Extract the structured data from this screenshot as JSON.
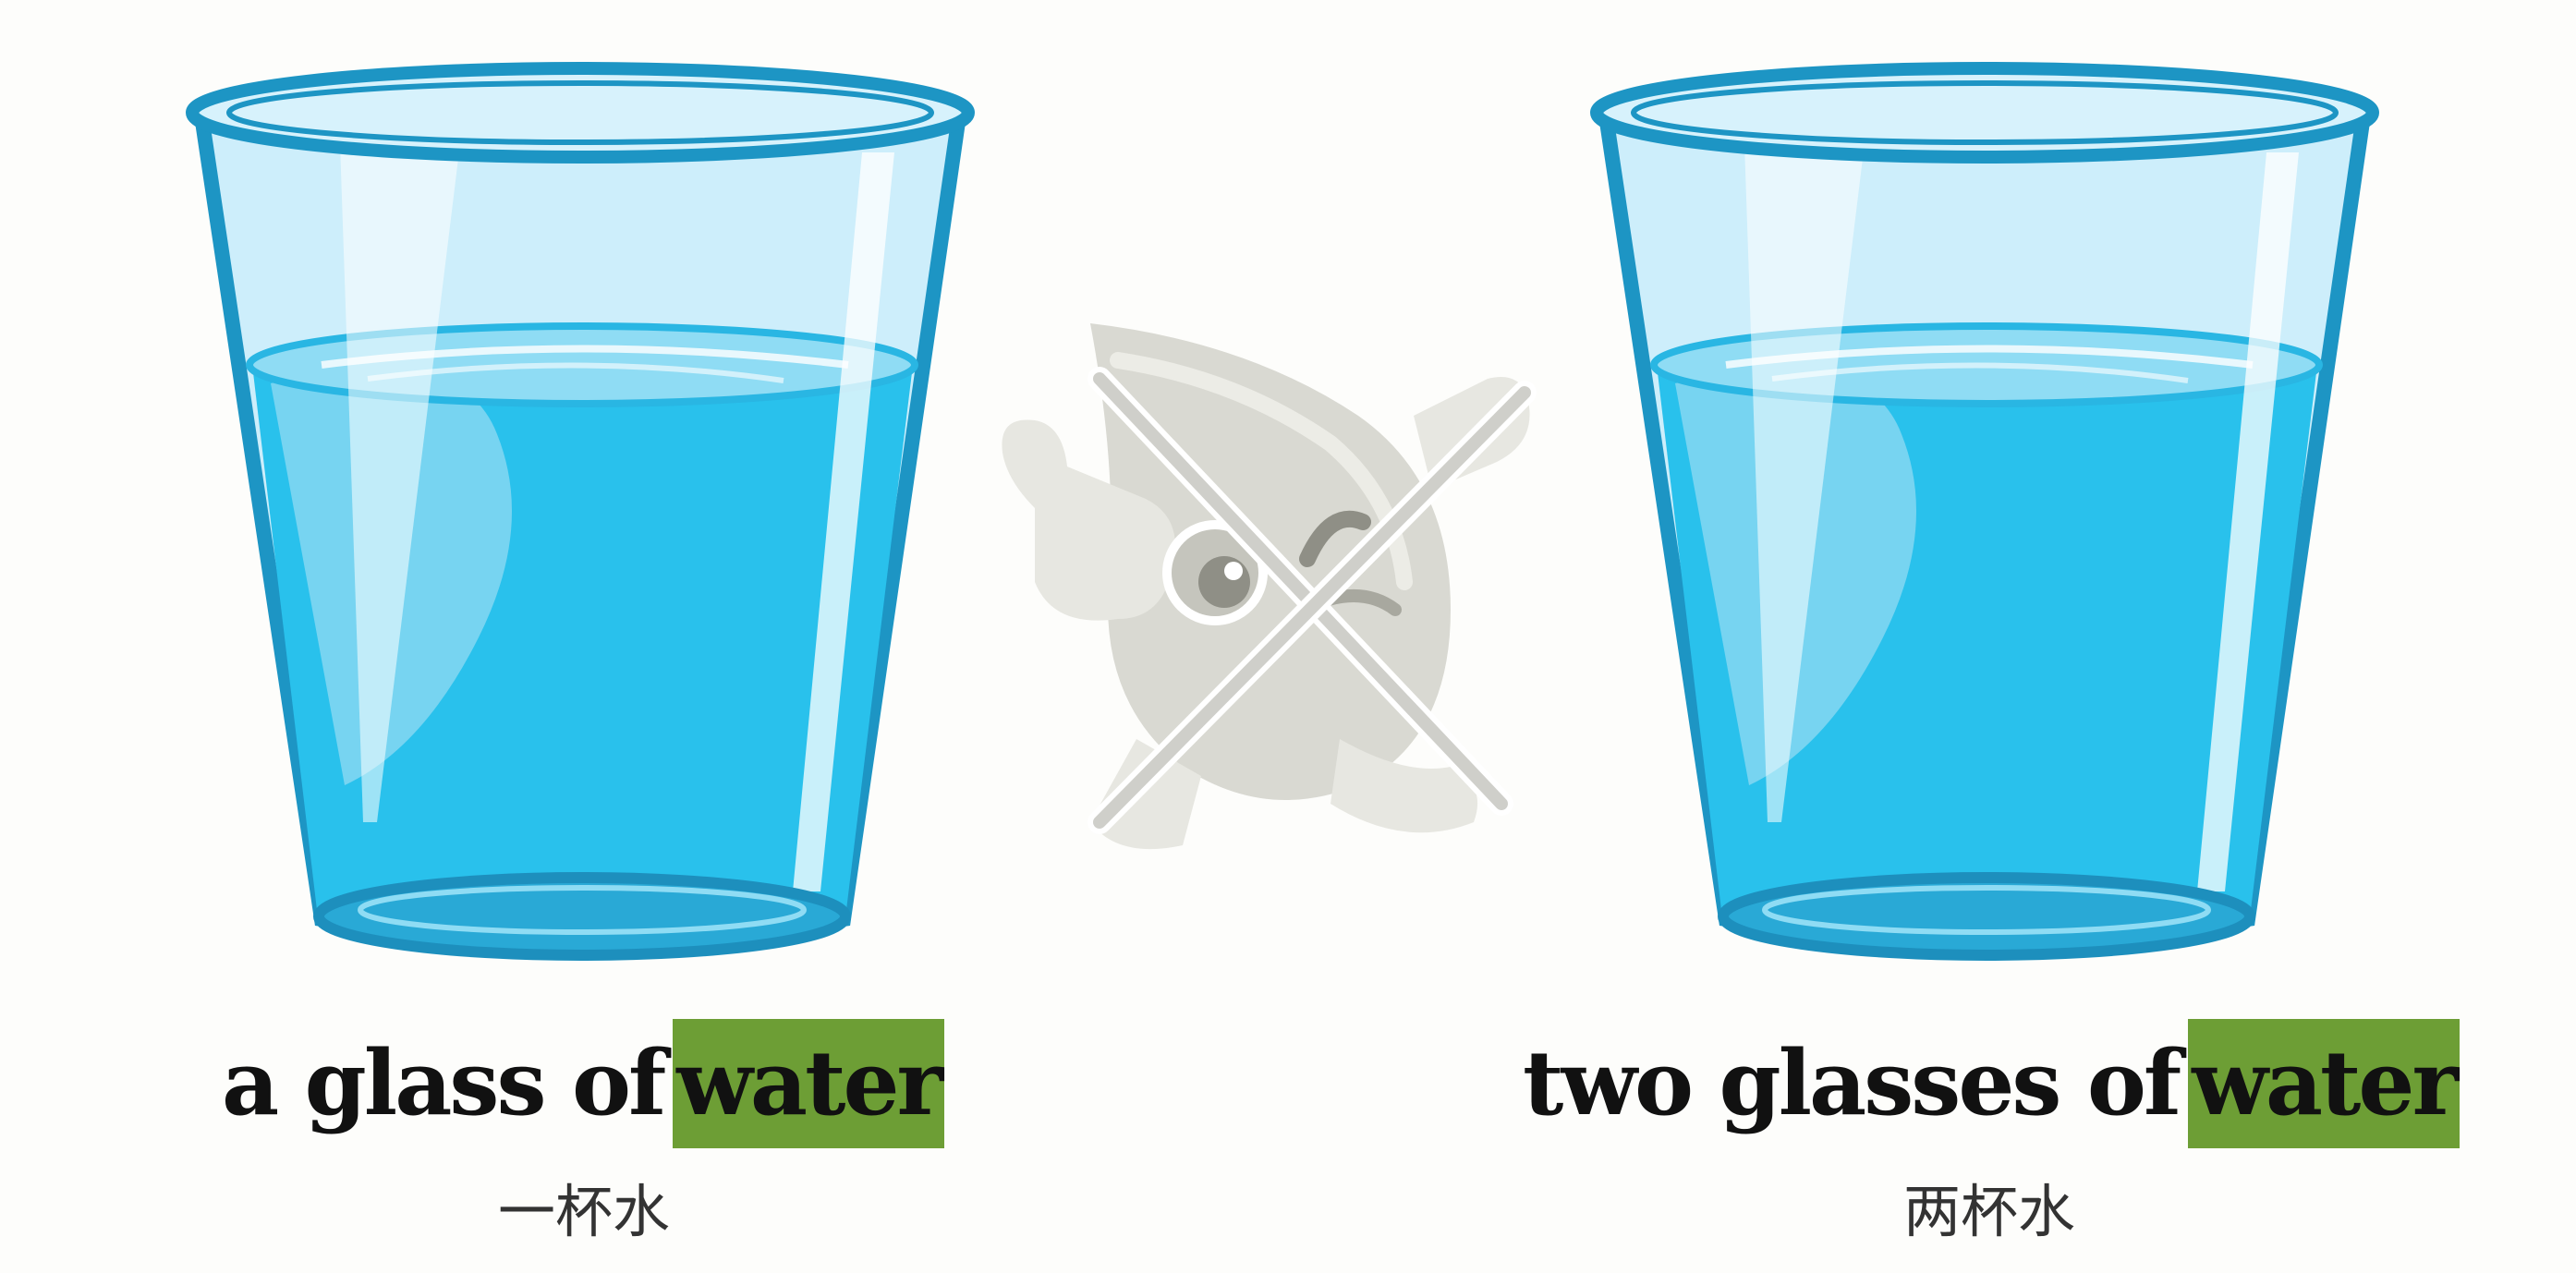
{
  "left_panel": {
    "caption_prefix": "a glass of",
    "caption_highlight": "water",
    "subtitle": "一杯水",
    "icon": "glass-of-water-icon"
  },
  "right_panel": {
    "caption_prefix": "two glasses of",
    "caption_highlight": "water",
    "subtitle": "两杯水",
    "icon": "glass-of-water-icon"
  },
  "center": {
    "icon": "crossed-out-thumbs-up-mascot-icon"
  },
  "colors": {
    "background": "#fdfdfb",
    "highlight": "#6d9e35",
    "water": "#29c1ec",
    "glass_outline": "#1d95c4",
    "glass_light": "#cdeefb",
    "mascot_grey": "#d9d9d2",
    "text": "#111111"
  }
}
